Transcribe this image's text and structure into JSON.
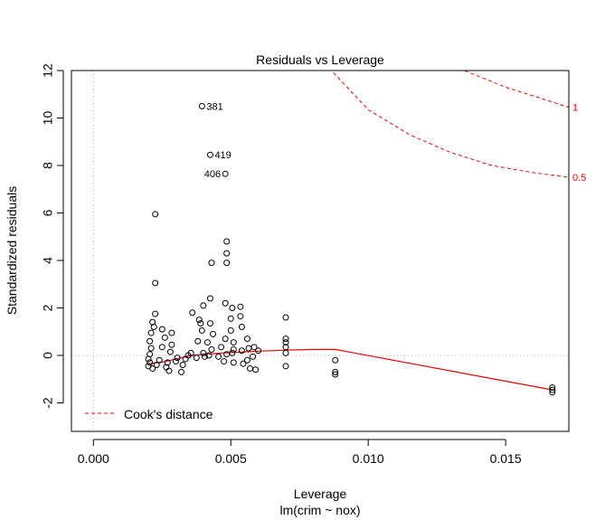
{
  "chart_data": {
    "type": "scatter",
    "title": "Residuals vs Leverage",
    "xlabel": "Leverage",
    "subtitle": "lm(crim ~ nox)",
    "ylabel": "Standardized residuals",
    "xlim": [
      -0.0008,
      0.0173
    ],
    "ylim": [
      -3.2,
      12.0
    ],
    "x_ticks": [
      {
        "value": 0.0,
        "label": "0.000"
      },
      {
        "value": 0.005,
        "label": "0.005"
      },
      {
        "value": 0.01,
        "label": "0.010"
      },
      {
        "value": 0.015,
        "label": "0.015"
      }
    ],
    "y_ticks": [
      {
        "value": -2,
        "label": "-2"
      },
      {
        "value": 0,
        "label": "0"
      },
      {
        "value": 2,
        "label": "2"
      },
      {
        "value": 4,
        "label": "4"
      },
      {
        "value": 6,
        "label": "6"
      },
      {
        "value": 8,
        "label": "8"
      },
      {
        "value": 10,
        "label": "10"
      },
      {
        "value": 12,
        "label": "12"
      }
    ],
    "grid": false,
    "reference_lines": {
      "horizontal_y": 0,
      "vertical_x": 0,
      "color": "#aaaaaa"
    },
    "points": [
      {
        "x": 0.00395,
        "y": 10.5,
        "label": "381"
      },
      {
        "x": 0.00425,
        "y": 8.45,
        "label": "419"
      },
      {
        "x": 0.0048,
        "y": 7.65,
        "label": "406"
      },
      {
        "x": 0.00225,
        "y": 5.95
      },
      {
        "x": 0.00225,
        "y": 3.05
      },
      {
        "x": 0.00225,
        "y": 1.75
      },
      {
        "x": 0.00215,
        "y": 1.4
      },
      {
        "x": 0.0022,
        "y": 1.2
      },
      {
        "x": 0.0021,
        "y": 0.95
      },
      {
        "x": 0.00205,
        "y": 0.6
      },
      {
        "x": 0.0021,
        "y": 0.3
      },
      {
        "x": 0.00205,
        "y": 0.05
      },
      {
        "x": 0.002,
        "y": -0.15
      },
      {
        "x": 0.00205,
        "y": -0.3
      },
      {
        "x": 0.002,
        "y": -0.45
      },
      {
        "x": 0.00215,
        "y": -0.55
      },
      {
        "x": 0.0023,
        "y": -0.4
      },
      {
        "x": 0.0024,
        "y": -0.2
      },
      {
        "x": 0.0025,
        "y": 0.35
      },
      {
        "x": 0.0025,
        "y": 1.1
      },
      {
        "x": 0.0026,
        "y": 0.75
      },
      {
        "x": 0.00265,
        "y": -0.5
      },
      {
        "x": 0.0027,
        "y": -0.3
      },
      {
        "x": 0.0028,
        "y": 0.15
      },
      {
        "x": 0.00285,
        "y": 0.45
      },
      {
        "x": 0.00285,
        "y": 0.95
      },
      {
        "x": 0.00275,
        "y": -0.65
      },
      {
        "x": 0.003,
        "y": -0.25
      },
      {
        "x": 0.00305,
        "y": -0.1
      },
      {
        "x": 0.0032,
        "y": -0.7
      },
      {
        "x": 0.00325,
        "y": -0.4
      },
      {
        "x": 0.00335,
        "y": -0.15
      },
      {
        "x": 0.00345,
        "y": 0.0
      },
      {
        "x": 0.00355,
        "y": 0.1
      },
      {
        "x": 0.0036,
        "y": 1.8
      },
      {
        "x": 0.00375,
        "y": -0.1
      },
      {
        "x": 0.0038,
        "y": 0.6
      },
      {
        "x": 0.00385,
        "y": 1.5
      },
      {
        "x": 0.0039,
        "y": 1.35
      },
      {
        "x": 0.00395,
        "y": 1.05
      },
      {
        "x": 0.004,
        "y": 2.1
      },
      {
        "x": 0.004,
        "y": 0.1
      },
      {
        "x": 0.00405,
        "y": -0.05
      },
      {
        "x": 0.00415,
        "y": 0.55
      },
      {
        "x": 0.0042,
        "y": 0.0
      },
      {
        "x": 0.00425,
        "y": 1.35
      },
      {
        "x": 0.00425,
        "y": 2.4
      },
      {
        "x": 0.0043,
        "y": 3.9
      },
      {
        "x": 0.0043,
        "y": 0.25
      },
      {
        "x": 0.00435,
        "y": 0.9
      },
      {
        "x": 0.00455,
        "y": -0.05
      },
      {
        "x": 0.00465,
        "y": 0.35
      },
      {
        "x": 0.00475,
        "y": -0.25
      },
      {
        "x": 0.0048,
        "y": 0.7
      },
      {
        "x": 0.0048,
        "y": 2.2
      },
      {
        "x": 0.00485,
        "y": 3.9
      },
      {
        "x": 0.00485,
        "y": 4.3
      },
      {
        "x": 0.00485,
        "y": 4.8
      },
      {
        "x": 0.00485,
        "y": 0.05
      },
      {
        "x": 0.005,
        "y": 1.55
      },
      {
        "x": 0.005,
        "y": 1.05
      },
      {
        "x": 0.00505,
        "y": 0.1
      },
      {
        "x": 0.00505,
        "y": 2.0
      },
      {
        "x": 0.0051,
        "y": 0.55
      },
      {
        "x": 0.0051,
        "y": 0.25
      },
      {
        "x": 0.0051,
        "y": -0.3
      },
      {
        "x": 0.00535,
        "y": 1.65
      },
      {
        "x": 0.00535,
        "y": 2.05
      },
      {
        "x": 0.0054,
        "y": 1.2
      },
      {
        "x": 0.0054,
        "y": 0.2
      },
      {
        "x": 0.00545,
        "y": -0.35
      },
      {
        "x": 0.0056,
        "y": 0.7
      },
      {
        "x": 0.0056,
        "y": -0.2
      },
      {
        "x": 0.00565,
        "y": 0.3
      },
      {
        "x": 0.0057,
        "y": -0.55
      },
      {
        "x": 0.0058,
        "y": -0.05
      },
      {
        "x": 0.00585,
        "y": 0.35
      },
      {
        "x": 0.0059,
        "y": -0.6
      },
      {
        "x": 0.006,
        "y": 0.2
      },
      {
        "x": 0.007,
        "y": 1.6
      },
      {
        "x": 0.007,
        "y": 0.7
      },
      {
        "x": 0.007,
        "y": 0.55
      },
      {
        "x": 0.007,
        "y": 0.35
      },
      {
        "x": 0.007,
        "y": 0.1
      },
      {
        "x": 0.007,
        "y": -0.45
      },
      {
        "x": 0.0088,
        "y": -0.2
      },
      {
        "x": 0.0088,
        "y": -0.7
      },
      {
        "x": 0.0088,
        "y": -0.8
      },
      {
        "x": 0.0167,
        "y": -1.35
      },
      {
        "x": 0.0167,
        "y": -1.45
      },
      {
        "x": 0.0167,
        "y": -1.55
      }
    ],
    "smoother": [
      [
        0.002,
        -0.35
      ],
      [
        0.0025,
        -0.28
      ],
      [
        0.003,
        -0.15
      ],
      [
        0.0035,
        -0.02
      ],
      [
        0.004,
        0.05
      ],
      [
        0.0045,
        0.08
      ],
      [
        0.005,
        0.12
      ],
      [
        0.0055,
        0.15
      ],
      [
        0.006,
        0.18
      ],
      [
        0.007,
        0.22
      ],
      [
        0.008,
        0.25
      ],
      [
        0.0088,
        0.25
      ],
      [
        0.0167,
        -1.45
      ]
    ],
    "cooks_contours": [
      {
        "level": "0.5",
        "points": [
          [
            0.0058,
            16.0
          ],
          [
            0.007,
            14.0
          ],
          [
            0.0085,
            12.2
          ],
          [
            0.01,
            10.35
          ],
          [
            0.0115,
            9.3
          ],
          [
            0.013,
            8.55
          ],
          [
            0.0145,
            8.0
          ],
          [
            0.016,
            7.7
          ],
          [
            0.0173,
            7.5
          ]
        ]
      },
      {
        "level": "1",
        "points": [
          [
            0.012,
            14.0
          ],
          [
            0.0135,
            12.0
          ],
          [
            0.015,
            11.3
          ],
          [
            0.0165,
            10.75
          ],
          [
            0.0173,
            10.45
          ]
        ]
      }
    ],
    "legend": {
      "label": "Cook's distance",
      "position": "bottom-left"
    },
    "colors": {
      "points": "#000000",
      "smoother": "#ee0000",
      "cooks": "#ee0000",
      "reference": "#aaaaaa"
    }
  }
}
